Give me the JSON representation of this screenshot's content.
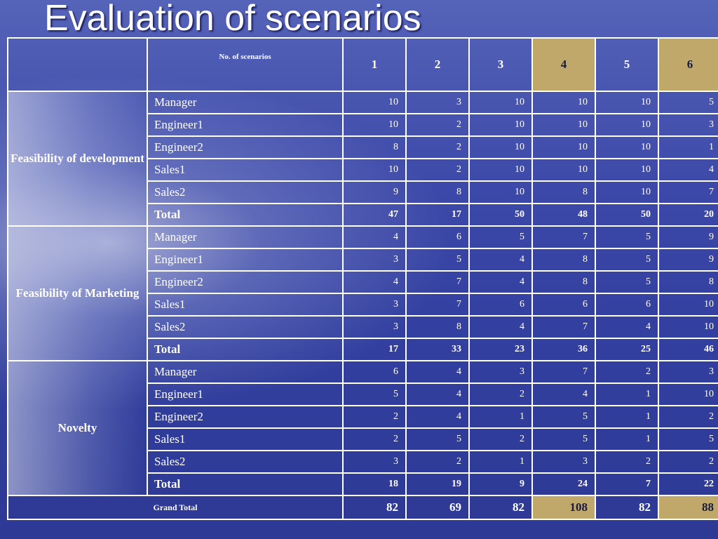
{
  "title": "Evaluation of scenarios",
  "header": {
    "label": "No. of scenarios",
    "scenarios": [
      "1",
      "2",
      "3",
      "4",
      "5",
      "6"
    ]
  },
  "highlight_color": "#bfa86a",
  "groups": [
    {
      "label": "Feasibility of development",
      "rows": [
        {
          "name": "Manager",
          "values": [
            "10",
            "3",
            "10",
            "10",
            "10",
            "5"
          ]
        },
        {
          "name": "Engineer1",
          "values": [
            "10",
            "2",
            "10",
            "10",
            "10",
            "3"
          ]
        },
        {
          "name": "Engineer2",
          "values": [
            "8",
            "2",
            "10",
            "10",
            "10",
            "1"
          ]
        },
        {
          "name": "Sales1",
          "values": [
            "10",
            "2",
            "10",
            "10",
            "10",
            "4"
          ]
        },
        {
          "name": "Sales2",
          "values": [
            "9",
            "8",
            "10",
            "8",
            "10",
            "7"
          ]
        },
        {
          "name": "Total",
          "values": [
            "47",
            "17",
            "50",
            "48",
            "50",
            "20"
          ]
        }
      ]
    },
    {
      "label": "Feasibility of Marketing",
      "rows": [
        {
          "name": "Manager",
          "values": [
            "4",
            "6",
            "5",
            "7",
            "5",
            "9"
          ]
        },
        {
          "name": "Engineer1",
          "values": [
            "3",
            "5",
            "4",
            "8",
            "5",
            "9"
          ]
        },
        {
          "name": "Engineer2",
          "values": [
            "4",
            "7",
            "4",
            "8",
            "5",
            "8"
          ]
        },
        {
          "name": "Sales1",
          "values": [
            "3",
            "7",
            "6",
            "6",
            "6",
            "10"
          ]
        },
        {
          "name": "Sales2",
          "values": [
            "3",
            "8",
            "4",
            "7",
            "4",
            "10"
          ]
        },
        {
          "name": "Total",
          "values": [
            "17",
            "33",
            "23",
            "36",
            "25",
            "46"
          ]
        }
      ]
    },
    {
      "label": "Novelty",
      "rows": [
        {
          "name": "Manager",
          "values": [
            "6",
            "4",
            "3",
            "7",
            "2",
            "3"
          ]
        },
        {
          "name": "Engineer1",
          "values": [
            "5",
            "4",
            "2",
            "4",
            "1",
            "10"
          ]
        },
        {
          "name": "Engineer2",
          "values": [
            "2",
            "4",
            "1",
            "5",
            "1",
            "2"
          ]
        },
        {
          "name": "Sales1",
          "values": [
            "2",
            "5",
            "2",
            "5",
            "1",
            "5"
          ]
        },
        {
          "name": "Sales2",
          "values": [
            "3",
            "2",
            "1",
            "3",
            "2",
            "2"
          ]
        },
        {
          "name": "Total",
          "values": [
            "18",
            "19",
            "9",
            "24",
            "7",
            "22"
          ]
        }
      ]
    }
  ],
  "grand_total": {
    "label": "Grand Total",
    "values": [
      "82",
      "69",
      "82",
      "108",
      "82",
      "88"
    ]
  }
}
